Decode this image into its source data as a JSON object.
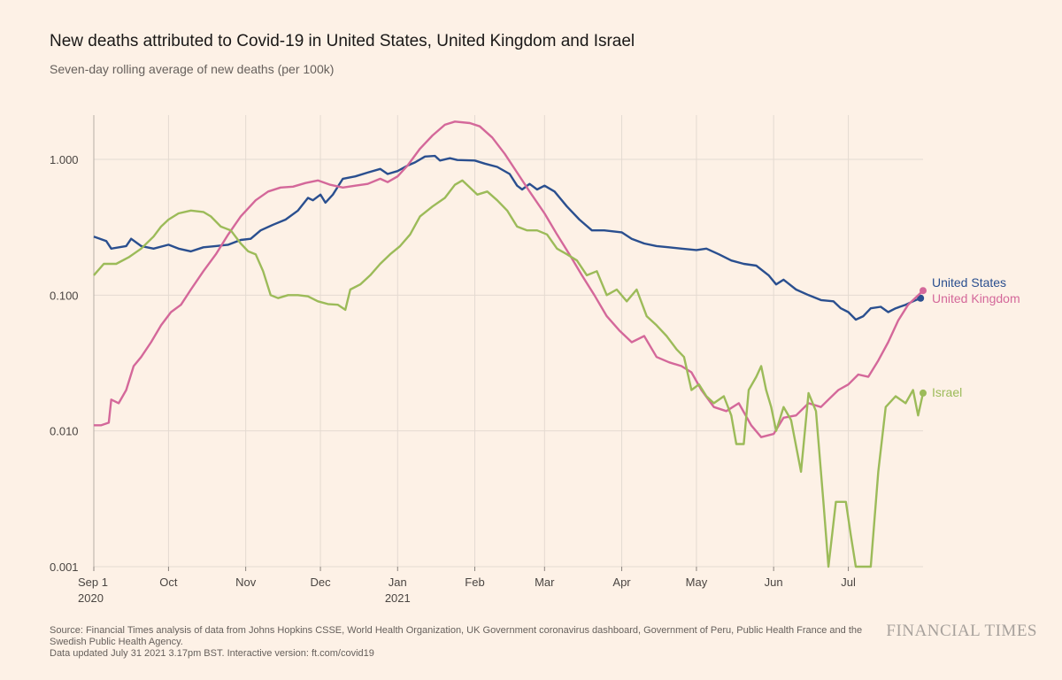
{
  "header": {
    "title": "New deaths attributed to Covid-19 in United States, United Kingdom and Israel",
    "subtitle": "Seven-day rolling average of new deaths (per 100k)"
  },
  "footer": {
    "source_line": "Source: Financial Times analysis of data from Johns Hopkins CSSE, World Health Organization, UK Government coronavirus dashboard, Government of Peru, Public Health France and the Swedish Public Health Agency.",
    "updated_line": "Data updated July 31 2021 3.17pm BST. Interactive version: ft.com/covid19",
    "brand": "FINANCIAL TIMES"
  },
  "chart_data": {
    "type": "line",
    "y_scale": "log",
    "ylim": [
      0.001,
      2
    ],
    "xlim": [
      "2020-09-01",
      "2021-07-31"
    ],
    "y_ticks": [
      {
        "value": 1,
        "label": "1.000"
      },
      {
        "value": 0.1,
        "label": "0.100"
      },
      {
        "value": 0.01,
        "label": "0.010"
      },
      {
        "value": 0.001,
        "label": "0.001"
      }
    ],
    "x_ticks": [
      {
        "date": "2020-09-01",
        "label": "Sep 1",
        "sublabel": "2020"
      },
      {
        "date": "2020-10-01",
        "label": "Oct",
        "sublabel": ""
      },
      {
        "date": "2020-11-01",
        "label": "Nov",
        "sublabel": ""
      },
      {
        "date": "2020-12-01",
        "label": "Dec",
        "sublabel": ""
      },
      {
        "date": "2021-01-01",
        "label": "Jan",
        "sublabel": "2021"
      },
      {
        "date": "2021-02-01",
        "label": "Feb",
        "sublabel": ""
      },
      {
        "date": "2021-03-01",
        "label": "Mar",
        "sublabel": ""
      },
      {
        "date": "2021-04-01",
        "label": "Apr",
        "sublabel": ""
      },
      {
        "date": "2021-05-01",
        "label": "May",
        "sublabel": ""
      },
      {
        "date": "2021-06-01",
        "label": "Jun",
        "sublabel": ""
      },
      {
        "date": "2021-07-01",
        "label": "Jul",
        "sublabel": ""
      }
    ],
    "grid": true,
    "legend": "inline labels at right end of lines",
    "series": [
      {
        "name": "United States",
        "color": "#2a4f8f",
        "points": [
          [
            "2020-09-01",
            0.27
          ],
          [
            "2020-09-06",
            0.25
          ],
          [
            "2020-09-08",
            0.22
          ],
          [
            "2020-09-14",
            0.23
          ],
          [
            "2020-09-16",
            0.26
          ],
          [
            "2020-09-20",
            0.23
          ],
          [
            "2020-09-25",
            0.22
          ],
          [
            "2020-10-01",
            0.235
          ],
          [
            "2020-10-05",
            0.22
          ],
          [
            "2020-10-10",
            0.21
          ],
          [
            "2020-10-15",
            0.225
          ],
          [
            "2020-10-20",
            0.23
          ],
          [
            "2020-10-25",
            0.235
          ],
          [
            "2020-10-30",
            0.255
          ],
          [
            "2020-11-03",
            0.26
          ],
          [
            "2020-11-07",
            0.3
          ],
          [
            "2020-11-12",
            0.33
          ],
          [
            "2020-11-17",
            0.36
          ],
          [
            "2020-11-22",
            0.42
          ],
          [
            "2020-11-26",
            0.52
          ],
          [
            "2020-11-28",
            0.5
          ],
          [
            "2020-12-01",
            0.55
          ],
          [
            "2020-12-03",
            0.48
          ],
          [
            "2020-12-06",
            0.55
          ],
          [
            "2020-12-10",
            0.72
          ],
          [
            "2020-12-15",
            0.75
          ],
          [
            "2020-12-20",
            0.8
          ],
          [
            "2020-12-25",
            0.85
          ],
          [
            "2020-12-28",
            0.78
          ],
          [
            "2021-01-01",
            0.82
          ],
          [
            "2021-01-05",
            0.9
          ],
          [
            "2021-01-08",
            0.95
          ],
          [
            "2021-01-12",
            1.05
          ],
          [
            "2021-01-16",
            1.06
          ],
          [
            "2021-01-18",
            0.98
          ],
          [
            "2021-01-22",
            1.02
          ],
          [
            "2021-01-25",
            0.99
          ],
          [
            "2021-02-01",
            0.98
          ],
          [
            "2021-02-05",
            0.93
          ],
          [
            "2021-02-10",
            0.88
          ],
          [
            "2021-02-15",
            0.78
          ],
          [
            "2021-02-18",
            0.64
          ],
          [
            "2021-02-20",
            0.6
          ],
          [
            "2021-02-23",
            0.66
          ],
          [
            "2021-02-26",
            0.6
          ],
          [
            "2021-03-01",
            0.64
          ],
          [
            "2021-03-05",
            0.58
          ],
          [
            "2021-03-10",
            0.45
          ],
          [
            "2021-03-15",
            0.36
          ],
          [
            "2021-03-20",
            0.3
          ],
          [
            "2021-03-25",
            0.3
          ],
          [
            "2021-04-01",
            0.29
          ],
          [
            "2021-04-05",
            0.26
          ],
          [
            "2021-04-10",
            0.24
          ],
          [
            "2021-04-15",
            0.23
          ],
          [
            "2021-04-20",
            0.225
          ],
          [
            "2021-04-25",
            0.22
          ],
          [
            "2021-05-01",
            0.215
          ],
          [
            "2021-05-05",
            0.22
          ],
          [
            "2021-05-10",
            0.2
          ],
          [
            "2021-05-15",
            0.18
          ],
          [
            "2021-05-20",
            0.17
          ],
          [
            "2021-05-25",
            0.165
          ],
          [
            "2021-05-30",
            0.14
          ],
          [
            "2021-06-02",
            0.12
          ],
          [
            "2021-06-05",
            0.13
          ],
          [
            "2021-06-10",
            0.11
          ],
          [
            "2021-06-15",
            0.1
          ],
          [
            "2021-06-20",
            0.092
          ],
          [
            "2021-06-25",
            0.09
          ],
          [
            "2021-06-28",
            0.08
          ],
          [
            "2021-07-01",
            0.075
          ],
          [
            "2021-07-04",
            0.066
          ],
          [
            "2021-07-07",
            0.07
          ],
          [
            "2021-07-10",
            0.08
          ],
          [
            "2021-07-14",
            0.082
          ],
          [
            "2021-07-17",
            0.075
          ],
          [
            "2021-07-20",
            0.08
          ],
          [
            "2021-07-24",
            0.085
          ],
          [
            "2021-07-27",
            0.09
          ],
          [
            "2021-07-30",
            0.095
          ]
        ]
      },
      {
        "name": "United Kingdom",
        "color": "#d4689a",
        "points": [
          [
            "2020-09-01",
            0.011
          ],
          [
            "2020-09-04",
            0.011
          ],
          [
            "2020-09-07",
            0.0115
          ],
          [
            "2020-09-08",
            0.017
          ],
          [
            "2020-09-11",
            0.016
          ],
          [
            "2020-09-14",
            0.02
          ],
          [
            "2020-09-17",
            0.03
          ],
          [
            "2020-09-20",
            0.035
          ],
          [
            "2020-09-24",
            0.045
          ],
          [
            "2020-09-28",
            0.06
          ],
          [
            "2020-10-02",
            0.075
          ],
          [
            "2020-10-06",
            0.085
          ],
          [
            "2020-10-10",
            0.11
          ],
          [
            "2020-10-15",
            0.15
          ],
          [
            "2020-10-20",
            0.2
          ],
          [
            "2020-10-25",
            0.28
          ],
          [
            "2020-10-30",
            0.38
          ],
          [
            "2020-11-05",
            0.5
          ],
          [
            "2020-11-10",
            0.58
          ],
          [
            "2020-11-15",
            0.62
          ],
          [
            "2020-11-20",
            0.63
          ],
          [
            "2020-11-25",
            0.67
          ],
          [
            "2020-11-30",
            0.7
          ],
          [
            "2020-12-05",
            0.65
          ],
          [
            "2020-12-10",
            0.62
          ],
          [
            "2020-12-15",
            0.64
          ],
          [
            "2020-12-20",
            0.66
          ],
          [
            "2020-12-25",
            0.72
          ],
          [
            "2020-12-28",
            0.68
          ],
          [
            "2021-01-01",
            0.75
          ],
          [
            "2021-01-05",
            0.9
          ],
          [
            "2021-01-10",
            1.2
          ],
          [
            "2021-01-15",
            1.5
          ],
          [
            "2021-01-20",
            1.8
          ],
          [
            "2021-01-24",
            1.9
          ],
          [
            "2021-01-30",
            1.85
          ],
          [
            "2021-02-03",
            1.75
          ],
          [
            "2021-02-08",
            1.45
          ],
          [
            "2021-02-13",
            1.1
          ],
          [
            "2021-02-18",
            0.8
          ],
          [
            "2021-02-23",
            0.58
          ],
          [
            "2021-03-01",
            0.4
          ],
          [
            "2021-03-06",
            0.28
          ],
          [
            "2021-03-11",
            0.2
          ],
          [
            "2021-03-16",
            0.14
          ],
          [
            "2021-03-21",
            0.1
          ],
          [
            "2021-03-26",
            0.07
          ],
          [
            "2021-03-31",
            0.055
          ],
          [
            "2021-04-05",
            0.045
          ],
          [
            "2021-04-10",
            0.05
          ],
          [
            "2021-04-15",
            0.035
          ],
          [
            "2021-04-20",
            0.032
          ],
          [
            "2021-04-25",
            0.03
          ],
          [
            "2021-04-29",
            0.027
          ],
          [
            "2021-05-03",
            0.02
          ],
          [
            "2021-05-08",
            0.015
          ],
          [
            "2021-05-13",
            0.014
          ],
          [
            "2021-05-18",
            0.016
          ],
          [
            "2021-05-23",
            0.011
          ],
          [
            "2021-05-27",
            0.009
          ],
          [
            "2021-06-01",
            0.0095
          ],
          [
            "2021-06-05",
            0.0125
          ],
          [
            "2021-06-10",
            0.013
          ],
          [
            "2021-06-15",
            0.016
          ],
          [
            "2021-06-20",
            0.015
          ],
          [
            "2021-06-23",
            0.017
          ],
          [
            "2021-06-27",
            0.02
          ],
          [
            "2021-07-01",
            0.022
          ],
          [
            "2021-07-05",
            0.026
          ],
          [
            "2021-07-09",
            0.025
          ],
          [
            "2021-07-13",
            0.033
          ],
          [
            "2021-07-17",
            0.045
          ],
          [
            "2021-07-21",
            0.065
          ],
          [
            "2021-07-25",
            0.085
          ],
          [
            "2021-07-31",
            0.108
          ]
        ]
      },
      {
        "name": "Israel",
        "color": "#9cbb59",
        "points": [
          [
            "2020-09-01",
            0.14
          ],
          [
            "2020-09-05",
            0.17
          ],
          [
            "2020-09-10",
            0.17
          ],
          [
            "2020-09-15",
            0.19
          ],
          [
            "2020-09-20",
            0.22
          ],
          [
            "2020-09-25",
            0.27
          ],
          [
            "2020-09-28",
            0.32
          ],
          [
            "2020-10-01",
            0.36
          ],
          [
            "2020-10-05",
            0.4
          ],
          [
            "2020-10-10",
            0.42
          ],
          [
            "2020-10-15",
            0.41
          ],
          [
            "2020-10-18",
            0.38
          ],
          [
            "2020-10-22",
            0.32
          ],
          [
            "2020-10-26",
            0.3
          ],
          [
            "2020-10-30",
            0.24
          ],
          [
            "2020-11-02",
            0.21
          ],
          [
            "2020-11-05",
            0.2
          ],
          [
            "2020-11-08",
            0.15
          ],
          [
            "2020-11-11",
            0.1
          ],
          [
            "2020-11-14",
            0.095
          ],
          [
            "2020-11-18",
            0.1
          ],
          [
            "2020-11-22",
            0.1
          ],
          [
            "2020-11-26",
            0.098
          ],
          [
            "2020-11-30",
            0.09
          ],
          [
            "2020-12-04",
            0.086
          ],
          [
            "2020-12-08",
            0.085
          ],
          [
            "2020-12-11",
            0.078
          ],
          [
            "2020-12-13",
            0.11
          ],
          [
            "2020-12-17",
            0.12
          ],
          [
            "2020-12-21",
            0.14
          ],
          [
            "2020-12-25",
            0.17
          ],
          [
            "2020-12-29",
            0.2
          ],
          [
            "2021-01-02",
            0.23
          ],
          [
            "2021-01-06",
            0.28
          ],
          [
            "2021-01-10",
            0.38
          ],
          [
            "2021-01-15",
            0.45
          ],
          [
            "2021-01-20",
            0.52
          ],
          [
            "2021-01-24",
            0.65
          ],
          [
            "2021-01-27",
            0.7
          ],
          [
            "2021-01-30",
            0.62
          ],
          [
            "2021-02-02",
            0.55
          ],
          [
            "2021-02-06",
            0.58
          ],
          [
            "2021-02-10",
            0.5
          ],
          [
            "2021-02-14",
            0.42
          ],
          [
            "2021-02-18",
            0.32
          ],
          [
            "2021-02-22",
            0.3
          ],
          [
            "2021-02-26",
            0.3
          ],
          [
            "2021-03-02",
            0.28
          ],
          [
            "2021-03-06",
            0.22
          ],
          [
            "2021-03-10",
            0.2
          ],
          [
            "2021-03-14",
            0.18
          ],
          [
            "2021-03-18",
            0.14
          ],
          [
            "2021-03-22",
            0.15
          ],
          [
            "2021-03-26",
            0.1
          ],
          [
            "2021-03-30",
            0.11
          ],
          [
            "2021-04-03",
            0.09
          ],
          [
            "2021-04-07",
            0.11
          ],
          [
            "2021-04-11",
            0.07
          ],
          [
            "2021-04-15",
            0.06
          ],
          [
            "2021-04-19",
            0.05
          ],
          [
            "2021-04-23",
            0.04
          ],
          [
            "2021-04-26",
            0.035
          ],
          [
            "2021-04-29",
            0.02
          ],
          [
            "2021-05-02",
            0.022
          ],
          [
            "2021-05-05",
            0.018
          ],
          [
            "2021-05-08",
            0.016
          ],
          [
            "2021-05-12",
            0.018
          ],
          [
            "2021-05-15",
            0.013
          ],
          [
            "2021-05-17",
            0.008
          ],
          [
            "2021-05-20",
            0.008
          ],
          [
            "2021-05-22",
            0.02
          ],
          [
            "2021-05-25",
            0.025
          ],
          [
            "2021-05-27",
            0.03
          ],
          [
            "2021-05-29",
            0.02
          ],
          [
            "2021-05-31",
            0.015
          ],
          [
            "2021-06-02",
            0.01
          ],
          [
            "2021-06-05",
            0.015
          ],
          [
            "2021-06-08",
            0.012
          ],
          [
            "2021-06-12",
            0.005
          ],
          [
            "2021-06-15",
            0.019
          ],
          [
            "2021-06-18",
            0.014
          ],
          [
            "2021-06-21",
            0.003
          ],
          [
            "2021-06-23",
            0.001
          ],
          [
            "2021-06-26",
            0.003
          ],
          [
            "2021-06-30",
            0.003
          ],
          [
            "2021-07-02",
            0.0017
          ],
          [
            "2021-07-04",
            0.001
          ],
          [
            "2021-07-10",
            0.001
          ],
          [
            "2021-07-13",
            0.005
          ],
          [
            "2021-07-16",
            0.015
          ],
          [
            "2021-07-20",
            0.018
          ],
          [
            "2021-07-24",
            0.016
          ],
          [
            "2021-07-27",
            0.02
          ],
          [
            "2021-07-29",
            0.013
          ],
          [
            "2021-07-31",
            0.019
          ]
        ]
      }
    ]
  }
}
